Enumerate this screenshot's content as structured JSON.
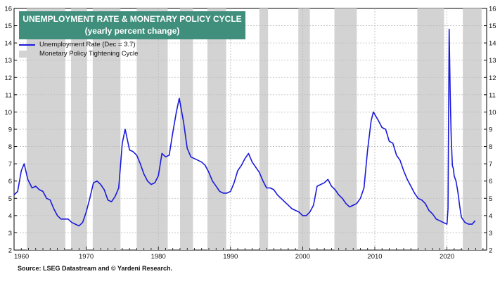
{
  "chart_data": {
    "type": "line",
    "title": "UNEMPLOYMENT RATE & MONETARY POLICY CYCLE",
    "subtitle": "(yearly percent change)",
    "xlim": [
      1960,
      2025.5
    ],
    "ylim": [
      2,
      16
    ],
    "x_ticks": [
      1960,
      1970,
      1980,
      1990,
      2000,
      2010,
      2020
    ],
    "y_ticks": [
      2,
      3,
      4,
      5,
      6,
      7,
      8,
      9,
      10,
      11,
      12,
      13,
      14,
      15,
      16
    ],
    "grid": true,
    "legend_position": "top-left",
    "colors": {
      "series": "#1a1adb",
      "shade": "#d3d3d3",
      "title_bg": "#3f8f7c",
      "grid": "#bbbbbb"
    },
    "series": [
      {
        "name": "Unemployment Rate (Dec  = 3.7)",
        "x": [
          1960.0,
          1960.5,
          1961.0,
          1961.4,
          1961.9,
          1962.5,
          1963.0,
          1963.5,
          1964.0,
          1964.5,
          1965.0,
          1965.5,
          1966.0,
          1966.5,
          1967.0,
          1967.5,
          1968.0,
          1968.5,
          1969.0,
          1969.5,
          1970.0,
          1970.5,
          1971.0,
          1971.5,
          1972.0,
          1972.5,
          1973.0,
          1973.5,
          1974.0,
          1974.5,
          1975.0,
          1975.4,
          1976.0,
          1976.5,
          1977.0,
          1977.5,
          1978.0,
          1978.5,
          1979.0,
          1979.5,
          1980.0,
          1980.5,
          1981.0,
          1981.5,
          1982.0,
          1982.5,
          1982.9,
          1983.5,
          1984.0,
          1984.5,
          1985.0,
          1985.5,
          1986.0,
          1986.5,
          1987.0,
          1987.5,
          1988.0,
          1988.5,
          1989.0,
          1989.5,
          1990.0,
          1990.5,
          1991.0,
          1991.5,
          1992.0,
          1992.5,
          1993.0,
          1993.5,
          1994.0,
          1994.5,
          1995.0,
          1995.5,
          1996.0,
          1996.5,
          1997.0,
          1997.5,
          1998.0,
          1998.5,
          1999.0,
          1999.5,
          2000.0,
          2000.5,
          2001.0,
          2001.5,
          2002.0,
          2002.5,
          2003.0,
          2003.5,
          2004.0,
          2004.5,
          2005.0,
          2005.5,
          2006.0,
          2006.5,
          2007.0,
          2007.5,
          2008.0,
          2008.5,
          2009.0,
          2009.5,
          2009.8,
          2010.5,
          2011.0,
          2011.5,
          2012.0,
          2012.5,
          2013.0,
          2013.5,
          2014.0,
          2014.5,
          2015.0,
          2015.5,
          2016.0,
          2016.5,
          2017.0,
          2017.5,
          2018.0,
          2018.5,
          2019.0,
          2019.5,
          2020.0,
          2020.15,
          2020.3,
          2020.45,
          2020.6,
          2020.75,
          2020.9,
          2021.0,
          2021.25,
          2021.5,
          2021.75,
          2022.0,
          2022.5,
          2023.0,
          2023.5,
          2023.9
        ],
        "values": [
          5.2,
          5.4,
          6.6,
          7.0,
          6.1,
          5.6,
          5.7,
          5.5,
          5.4,
          5.0,
          4.9,
          4.4,
          4.0,
          3.8,
          3.8,
          3.8,
          3.6,
          3.5,
          3.4,
          3.6,
          4.2,
          5.0,
          5.9,
          6.0,
          5.8,
          5.5,
          4.9,
          4.8,
          5.1,
          5.6,
          8.2,
          9.0,
          7.8,
          7.7,
          7.5,
          7.0,
          6.4,
          6.0,
          5.8,
          5.9,
          6.3,
          7.6,
          7.4,
          7.5,
          8.8,
          10.0,
          10.8,
          9.4,
          7.9,
          7.4,
          7.3,
          7.2,
          7.1,
          6.9,
          6.5,
          6.0,
          5.7,
          5.4,
          5.3,
          5.3,
          5.4,
          5.9,
          6.6,
          6.9,
          7.3,
          7.6,
          7.1,
          6.8,
          6.5,
          6.0,
          5.6,
          5.6,
          5.5,
          5.2,
          5.0,
          4.8,
          4.6,
          4.4,
          4.3,
          4.2,
          4.0,
          4.0,
          4.2,
          4.6,
          5.7,
          5.8,
          5.9,
          6.1,
          5.7,
          5.5,
          5.2,
          5.0,
          4.7,
          4.5,
          4.6,
          4.7,
          5.0,
          5.6,
          7.8,
          9.5,
          10.0,
          9.5,
          9.1,
          9.0,
          8.3,
          8.2,
          7.5,
          7.2,
          6.6,
          6.1,
          5.7,
          5.3,
          5.0,
          4.9,
          4.7,
          4.3,
          4.1,
          3.8,
          3.7,
          3.6,
          3.5,
          4.4,
          14.8,
          11.0,
          8.4,
          6.9,
          6.7,
          6.3,
          6.0,
          5.4,
          4.6,
          3.9,
          3.6,
          3.5,
          3.5,
          3.7
        ]
      },
      {
        "name": "Monetary Policy Tightening Cycle",
        "shading": true,
        "periods": [
          [
            1961.75,
            1967.1
          ],
          [
            1967.9,
            1970.1
          ],
          [
            1970.9,
            1974.75
          ],
          [
            1977.0,
            1981.3
          ],
          [
            1983.0,
            1984.8
          ],
          [
            1986.8,
            1989.4
          ],
          [
            1994.0,
            1995.2
          ],
          [
            1999.4,
            2001.0
          ],
          [
            2004.4,
            2007.5
          ],
          [
            2015.9,
            2019.6
          ],
          [
            2022.2,
            2024.8
          ]
        ]
      }
    ]
  },
  "source": "Source: LSEG Datastream and © Yardeni Research."
}
